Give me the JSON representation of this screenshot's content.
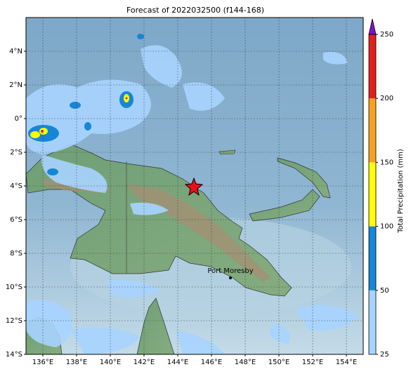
{
  "title": "Forecast of 2022032500 (f144-168)",
  "map": {
    "lon_range": [
      135,
      155
    ],
    "lat_range": [
      -14,
      6
    ],
    "lon_ticks": [
      {
        "value": 136,
        "label": "136°E"
      },
      {
        "value": 138,
        "label": "138°E"
      },
      {
        "value": 140,
        "label": "140°E"
      },
      {
        "value": 142,
        "label": "142°E"
      },
      {
        "value": 144,
        "label": "144°E"
      },
      {
        "value": 146,
        "label": "146°E"
      },
      {
        "value": 148,
        "label": "148°E"
      },
      {
        "value": 150,
        "label": "150°E"
      },
      {
        "value": 152,
        "label": "152°E"
      },
      {
        "value": 154,
        "label": "154°E"
      }
    ],
    "lat_ticks": [
      {
        "value": 4,
        "label": "4°N"
      },
      {
        "value": 2,
        "label": "2°N"
      },
      {
        "value": 0,
        "label": "0°"
      },
      {
        "value": -2,
        "label": "2°S"
      },
      {
        "value": -4,
        "label": "4°S"
      },
      {
        "value": -6,
        "label": "6°S"
      },
      {
        "value": -8,
        "label": "8°S"
      },
      {
        "value": -10,
        "label": "10°S"
      },
      {
        "value": -12,
        "label": "12°S"
      },
      {
        "value": -14,
        "label": "14°S"
      }
    ],
    "grid": true,
    "place": "Port Moresby"
  },
  "colorbar": {
    "label": "Total Precipitation (mm)",
    "ticks": [
      25,
      50,
      100,
      150,
      200,
      250
    ],
    "colors": [
      "#a8d4ff",
      "#1686d6",
      "#ffff00",
      "#f6a21e",
      "#e02020"
    ],
    "extend_color": "#7b16c8"
  }
}
